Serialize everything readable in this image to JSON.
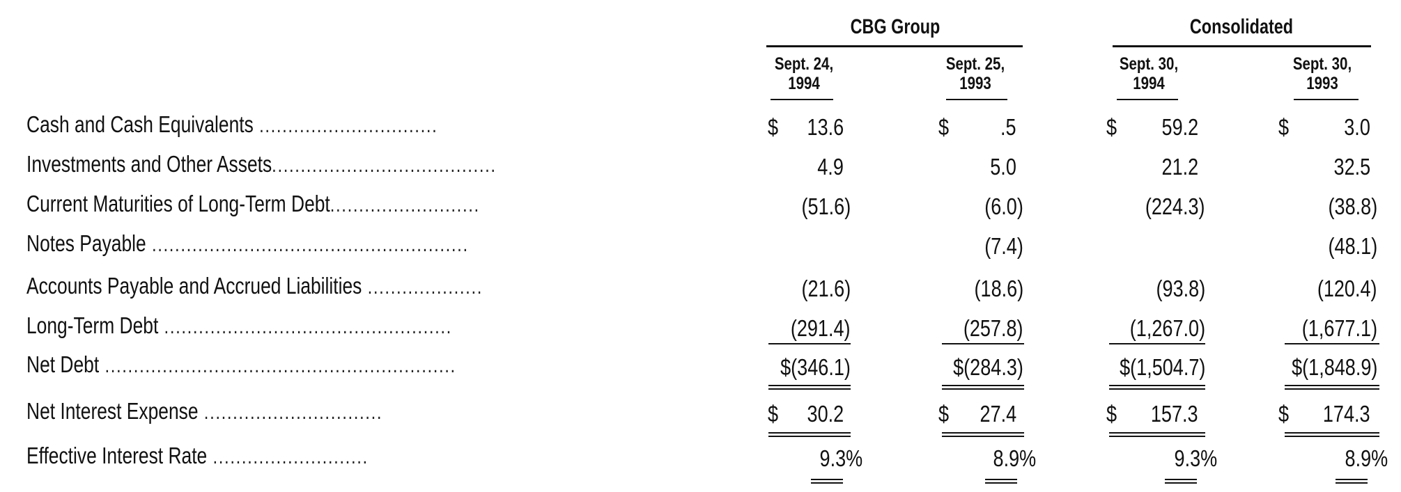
{
  "groups": [
    {
      "title": "CBG Group"
    },
    {
      "title": "Consolidated"
    }
  ],
  "columns": [
    {
      "line1": "Sept. 24,",
      "line2": "1994"
    },
    {
      "line1": "Sept. 25,",
      "line2": "1993"
    },
    {
      "line1": "Sept. 30,",
      "line2": "1994"
    },
    {
      "line1": "Sept. 30,",
      "line2": "1993"
    }
  ],
  "rows": [
    {
      "label": "Cash and Cash Equivalents",
      "dollar": [
        "$",
        "$",
        "$",
        "$"
      ],
      "values": [
        "13.6",
        ".5",
        "59.2",
        "3.0"
      ]
    },
    {
      "label": "Investments and Other Assets",
      "dollar": [
        "",
        "",
        "",
        ""
      ],
      "values": [
        "4.9",
        "5.0",
        "21.2",
        "32.5"
      ]
    },
    {
      "label": "Current Maturities of Long-Term Debt",
      "dollar": [
        "",
        "",
        "",
        ""
      ],
      "values": [
        "(51.6)",
        "(6.0)",
        "(224.3)",
        "(38.8)"
      ]
    },
    {
      "label": "Notes Payable",
      "dollar": [
        "",
        "",
        "",
        ""
      ],
      "values": [
        "",
        "(7.4)",
        "",
        "(48.1)"
      ]
    },
    {
      "label": "Accounts Payable and Accrued Liabilities",
      "dollar": [
        "",
        "",
        "",
        ""
      ],
      "values": [
        "(21.6)",
        "(18.6)",
        "(93.8)",
        "(120.4)"
      ]
    },
    {
      "label": "Long-Term Debt",
      "dollar": [
        "",
        "",
        "",
        ""
      ],
      "values": [
        "(291.4)",
        "(257.8)",
        "(1,267.0)",
        "(1,677.1)"
      ]
    },
    {
      "label": "Net Debt",
      "dollar": [
        "",
        "",
        "",
        ""
      ],
      "values": [
        "$(346.1)",
        "$(284.3)",
        "$(1,504.7)",
        "$(1,848.9)"
      ]
    },
    {
      "label": "Net Interest Expense",
      "dollar": [
        "$",
        "$",
        "$",
        "$"
      ],
      "values": [
        "30.2",
        "27.4",
        "157.3",
        "174.3"
      ]
    },
    {
      "label": "Effective Interest Rate",
      "dollar": [
        "",
        "",
        "",
        ""
      ],
      "values": [
        "9.3%",
        "8.9%",
        "9.3%",
        "8.9%"
      ]
    }
  ]
}
